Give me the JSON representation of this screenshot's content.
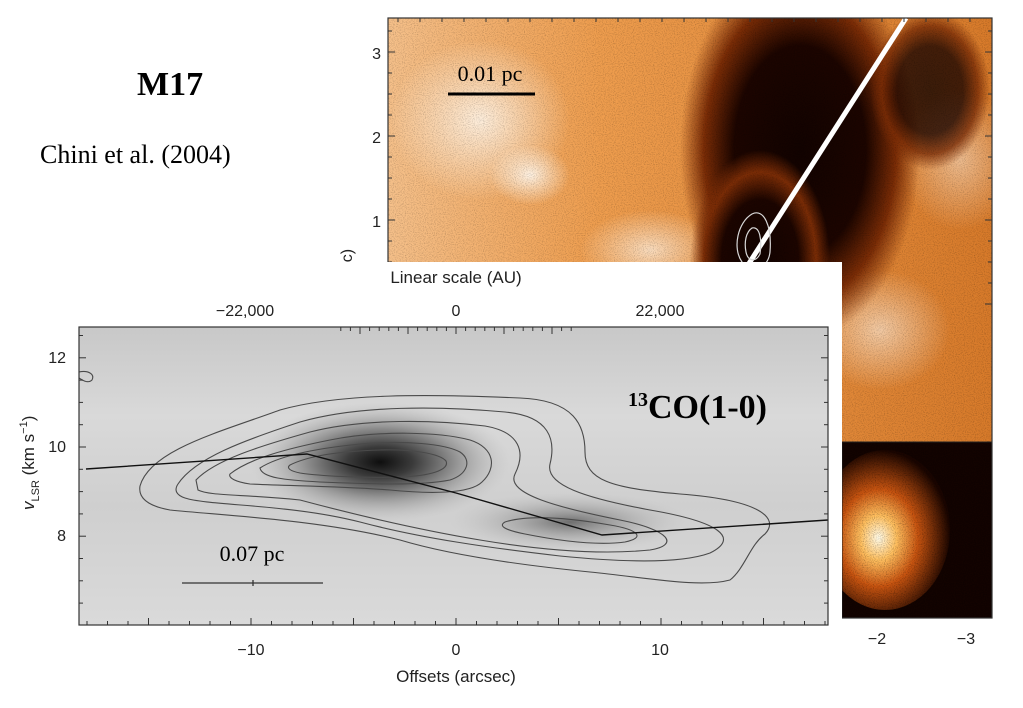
{
  "slide": {
    "title": "M17",
    "citation": "Chini et al. (2004)"
  },
  "background_image": {
    "y_axis_ticks": [
      "3",
      "2",
      "1"
    ],
    "y_axis_label_fragment": "csec)",
    "x_axis_ticks": [
      "−2",
      "−3"
    ],
    "scale_bar_label": "0.01 pc",
    "palette": {
      "bright": "#fdf3e6",
      "mid": "#e67e22",
      "dark": "#140400"
    }
  },
  "pv_diagram": {
    "species_superscript": "13",
    "species_main": "CO(1-0)",
    "top_axis_label": "Linear scale (AU)",
    "top_ticks": [
      "−22,000",
      "0",
      "22,000"
    ],
    "y_axis_label_main": "v",
    "y_axis_label_sub": "LSR",
    "y_axis_label_unit": " (km s",
    "y_axis_label_exp": "−1",
    "y_axis_label_close": ")",
    "y_ticks": [
      "12",
      "10",
      "8"
    ],
    "x_axis_label": "Offsets (arcsec)",
    "x_ticks": [
      "−10",
      "0",
      "10"
    ],
    "scale_bar_label": "0.07 pc"
  }
}
